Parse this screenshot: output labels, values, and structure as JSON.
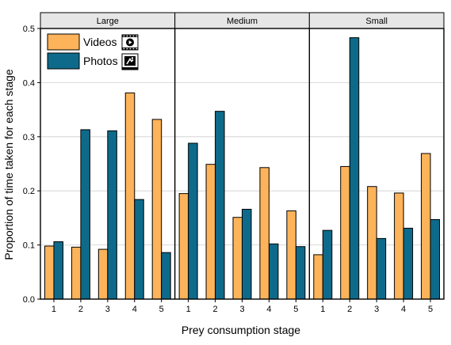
{
  "chart_data": {
    "type": "bar",
    "xlabel": "Prey consumption stage",
    "ylabel": "Proportion of time taken for each stage",
    "ylim": [
      0,
      0.5
    ],
    "yticks": [
      "0.0",
      "0.1",
      "0.2",
      "0.3",
      "0.4",
      "0.5"
    ],
    "categories": [
      "1",
      "2",
      "3",
      "4",
      "5"
    ],
    "grid": "horizontal",
    "legend_position": "top-left",
    "colors": {
      "Videos": "#FDB35A",
      "Photos": "#0E6A8A"
    },
    "legend": [
      {
        "name": "Videos",
        "icon": "video-camera-icon"
      },
      {
        "name": "Photos",
        "icon": "photo-icon"
      }
    ],
    "panels": [
      {
        "name": "Large",
        "series": [
          {
            "name": "Videos",
            "values": [
              0.098,
              0.096,
              0.092,
              0.381,
              0.332
            ]
          },
          {
            "name": "Photos",
            "values": [
              0.106,
              0.313,
              0.311,
              0.184,
              0.086
            ]
          }
        ]
      },
      {
        "name": "Medium",
        "series": [
          {
            "name": "Videos",
            "values": [
              0.195,
              0.249,
              0.151,
              0.243,
              0.163
            ]
          },
          {
            "name": "Photos",
            "values": [
              0.288,
              0.347,
              0.166,
              0.102,
              0.097
            ]
          }
        ]
      },
      {
        "name": "Small",
        "series": [
          {
            "name": "Videos",
            "values": [
              0.082,
              0.245,
              0.208,
              0.196,
              0.269
            ]
          },
          {
            "name": "Photos",
            "values": [
              0.127,
              0.483,
              0.112,
              0.131,
              0.147
            ]
          }
        ]
      }
    ]
  }
}
